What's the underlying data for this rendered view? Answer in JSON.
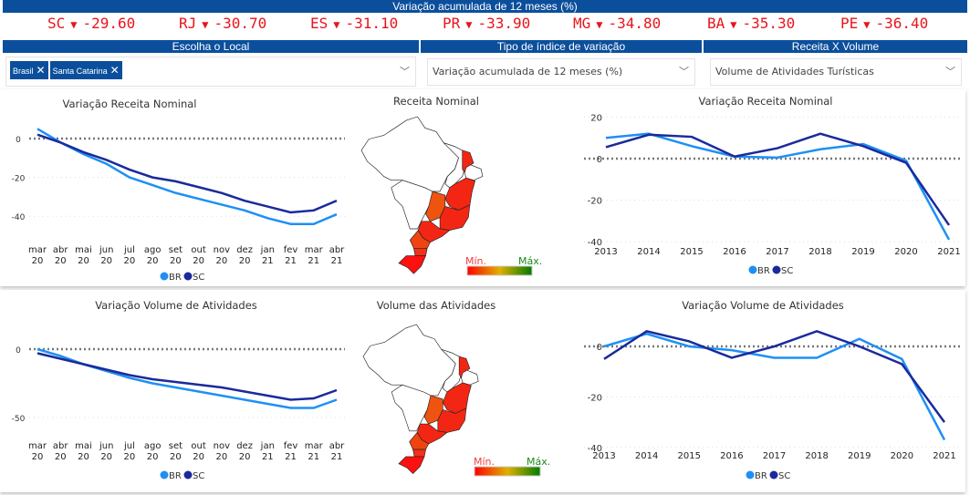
{
  "header": {
    "title": "Variação acumulada de 12 meses (%)"
  },
  "ticker": [
    {
      "state": "SC",
      "arrow": "▼",
      "value": "-29.60"
    },
    {
      "state": "RJ",
      "arrow": "▼",
      "value": "-30.70"
    },
    {
      "state": "ES",
      "arrow": "▼",
      "value": "-31.10"
    },
    {
      "state": "PR",
      "arrow": "▼",
      "value": "-33.90"
    },
    {
      "state": "MG",
      "arrow": "▼",
      "value": "-34.80"
    },
    {
      "state": "BA",
      "arrow": "▼",
      "value": "-35.30"
    },
    {
      "state": "PE",
      "arrow": "▼",
      "value": "-36.40"
    }
  ],
  "filters": {
    "local": {
      "label": "Escolha o Local",
      "chips": [
        "Brasil",
        "Santa Catarina"
      ]
    },
    "tipo": {
      "label": "Tipo de índice de variação",
      "value": "Variação acumulada de 12 meses (%)"
    },
    "receita_volume": {
      "label": "Receita X Volume",
      "value": "Volume de Atividades Turísticas"
    }
  },
  "maps": {
    "receita": {
      "title": "Receita Nominal",
      "min": "Mín.",
      "max": "Máx."
    },
    "volume": {
      "title": "Volume das Atividades",
      "min": "Mín.",
      "max": "Máx."
    }
  },
  "colors": {
    "BR": "#1e90f5",
    "SC": "#1a2a9c",
    "brand": "#0b4f9c",
    "ticker": "#e8141c"
  },
  "chart_data": [
    {
      "id": "c1",
      "type": "line",
      "title": "Variação Receita Nominal",
      "categories": [
        "mar 20",
        "abr 20",
        "mai 20",
        "jun 20",
        "jul 20",
        "ago 20",
        "set 20",
        "out 20",
        "nov 20",
        "dez 20",
        "jan 21",
        "fev 21",
        "mar 21",
        "abr 21"
      ],
      "yticks": [
        0,
        -20,
        -40
      ],
      "ylim": [
        -50,
        8
      ],
      "legend": "bottom",
      "series": [
        {
          "name": "BR",
          "values": [
            5,
            -2,
            -8,
            -13,
            -20,
            -24,
            -28,
            -31,
            -34,
            -37,
            -41,
            -44,
            -44,
            -39
          ]
        },
        {
          "name": "SC",
          "values": [
            2,
            -2,
            -7,
            -11,
            -16,
            -20,
            -22,
            -25,
            -28,
            -32,
            -35,
            -38,
            -37,
            -32
          ]
        }
      ]
    },
    {
      "id": "c2",
      "type": "line",
      "title": "Variação Receita Nominal",
      "categories": [
        "2013",
        "2014",
        "2015",
        "2016",
        "2017",
        "2018",
        "2019",
        "2020",
        "2021"
      ],
      "yticks": [
        20,
        0,
        -20,
        -40
      ],
      "ylim": [
        -40,
        20
      ],
      "legend": "bottom",
      "series": [
        {
          "name": "BR",
          "values": [
            10,
            12,
            6,
            1,
            0.5,
            4.5,
            7,
            -1,
            -39
          ]
        },
        {
          "name": "SC",
          "values": [
            5.5,
            11.5,
            10.5,
            1,
            5,
            12,
            6,
            -2,
            -32
          ]
        }
      ]
    },
    {
      "id": "c3",
      "type": "line",
      "title": "Variação Volume de Atividades",
      "categories": [
        "mar 20",
        "abr 20",
        "mai 20",
        "jun 20",
        "jul 20",
        "ago 20",
        "set 20",
        "out 20",
        "nov 20",
        "dez 20",
        "jan 21",
        "fev 21",
        "mar 21",
        "abr 21"
      ],
      "yticks": [
        0,
        -50
      ],
      "ylim": [
        -50,
        0
      ],
      "legend": "bottom",
      "series": [
        {
          "name": "BR",
          "values": [
            0,
            -5,
            -11,
            -16,
            -21,
            -25,
            -28,
            -31,
            -34,
            -37,
            -40,
            -43,
            -43,
            -37
          ]
        },
        {
          "name": "SC",
          "values": [
            -3,
            -7,
            -11,
            -15,
            -19,
            -22,
            -24,
            -26,
            -28,
            -31,
            -34,
            -37,
            -36,
            -30
          ]
        }
      ]
    },
    {
      "id": "c4",
      "type": "line",
      "title": "Variação Volume de Atividades",
      "categories": [
        "2013",
        "2014",
        "2015",
        "2016",
        "2017",
        "2018",
        "2019",
        "2020",
        "2021"
      ],
      "yticks": [
        0,
        -20,
        -40
      ],
      "ylim": [
        -40,
        7
      ],
      "legend": "bottom",
      "series": [
        {
          "name": "BR",
          "values": [
            0,
            5,
            0,
            -1.5,
            -4.5,
            -4.5,
            3,
            -5,
            -37
          ]
        },
        {
          "name": "SC",
          "values": [
            -5,
            6,
            2,
            -4.5,
            0,
            6,
            0,
            -7,
            -30
          ]
        }
      ]
    }
  ]
}
